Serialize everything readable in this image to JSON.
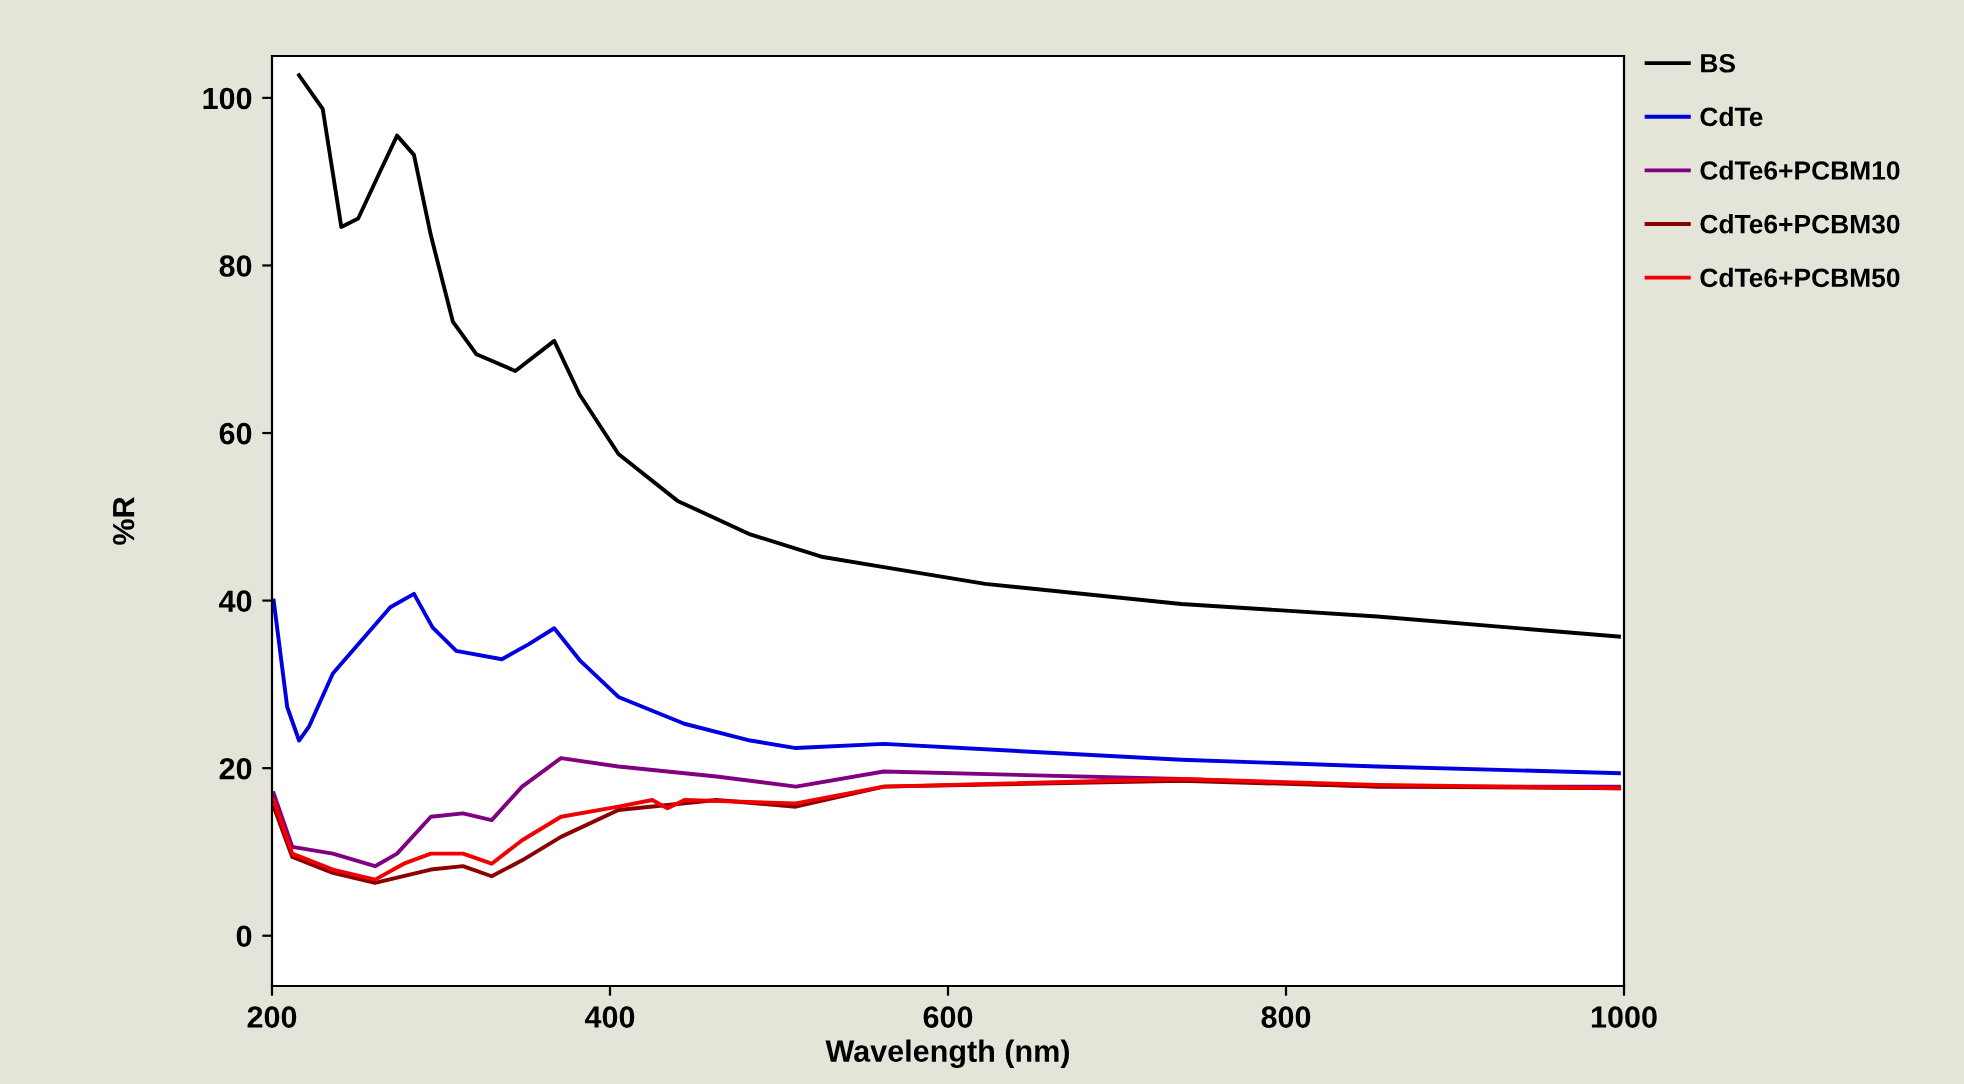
{
  "chart_data": {
    "type": "line",
    "xlabel": "Wavelength (nm)",
    "ylabel": "%R",
    "xlim": [
      200,
      1000
    ],
    "ylim": [
      -6,
      105
    ],
    "xticks": [
      200,
      400,
      600,
      800,
      1000
    ],
    "yticks": [
      0,
      20,
      40,
      60,
      80,
      100
    ],
    "grid": false,
    "legend": "top right",
    "marker": "none",
    "line_style": "solid",
    "series": [
      {
        "name": "BS",
        "color": "#000000",
        "x": [
          216,
          230,
          241,
          251,
          263,
          274,
          284,
          294,
          307,
          321,
          344,
          367,
          382,
          405,
          440,
          483,
          526,
          562,
          622,
          738,
          854,
          997
        ],
        "values": [
          102.7,
          98.7,
          84.6,
          85.6,
          90.8,
          95.5,
          93.2,
          83.6,
          73.3,
          69.4,
          67.4,
          71.0,
          64.6,
          57.5,
          51.9,
          47.9,
          45.2,
          44.0,
          42.0,
          39.6,
          38.1,
          35.7
        ]
      },
      {
        "name": "CdTe",
        "color": "#0000e0",
        "x": [
          201,
          209,
          216,
          222,
          236,
          270,
          284,
          295,
          309,
          336,
          352,
          367,
          382,
          405,
          444,
          483,
          510,
          562,
          738,
          854,
          997
        ],
        "values": [
          40.0,
          27.3,
          23.3,
          25.0,
          31.3,
          39.2,
          40.8,
          36.8,
          34.0,
          33.0,
          34.8,
          36.7,
          32.9,
          28.5,
          25.3,
          23.3,
          22.4,
          22.9,
          21.0,
          20.2,
          19.4
        ]
      },
      {
        "name": "CdTe6+PCBM10",
        "color": "#800080",
        "x": [
          201,
          212,
          236,
          261,
          274,
          294,
          313,
          330,
          348,
          371,
          405,
          463,
          510,
          562,
          738,
          854,
          997
        ],
        "values": [
          17.0,
          10.6,
          9.8,
          8.3,
          9.8,
          14.2,
          14.6,
          13.8,
          17.8,
          21.2,
          20.2,
          19.0,
          17.8,
          19.6,
          18.7,
          17.8,
          17.8
        ]
      },
      {
        "name": "CdTe6+PCBM30",
        "color": "#8b0000",
        "x": [
          201,
          212,
          236,
          261,
          294,
          313,
          330,
          348,
          371,
          405,
          463,
          510,
          562,
          738,
          854,
          997
        ],
        "values": [
          15.4,
          9.4,
          7.5,
          6.3,
          7.9,
          8.3,
          7.1,
          9.0,
          11.8,
          15.0,
          16.2,
          15.4,
          17.8,
          18.5,
          17.8,
          17.6
        ]
      },
      {
        "name": "CdTe6+PCBM50",
        "color": "#f00000",
        "x": [
          201,
          212,
          236,
          261,
          278,
          294,
          313,
          330,
          348,
          371,
          405,
          425,
          434,
          444,
          510,
          562,
          738,
          854,
          997
        ],
        "values": [
          16.2,
          9.8,
          7.9,
          6.7,
          8.6,
          9.8,
          9.8,
          8.6,
          11.4,
          14.2,
          15.4,
          16.2,
          15.2,
          16.2,
          15.8,
          17.8,
          18.7,
          18.0,
          17.6
        ]
      }
    ]
  }
}
